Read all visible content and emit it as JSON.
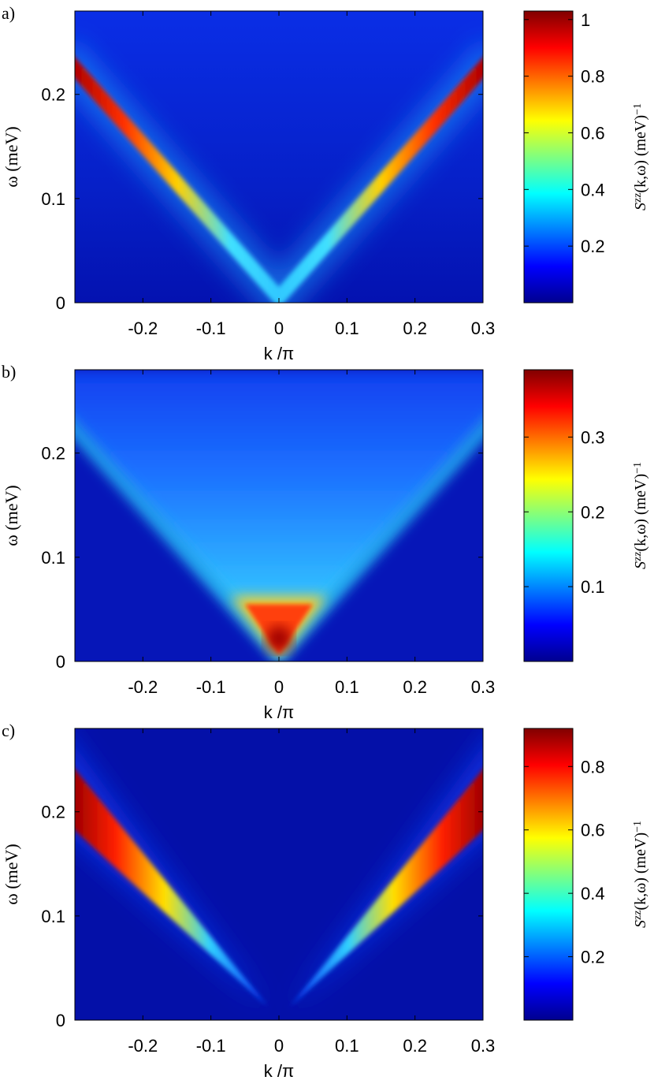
{
  "chart_data": [
    {
      "type": "heatmap",
      "panel_label": "a)",
      "xlabel": "k /π",
      "ylabel": "ω (meV)",
      "xlim": [
        -0.3,
        0.3
      ],
      "ylim": [
        0,
        0.28
      ],
      "xticks": [
        -0.2,
        -0.1,
        0,
        0.1,
        0.2,
        0.3
      ],
      "yticks": [
        0,
        0.1,
        0.2
      ],
      "colorbar_label": [
        "S",
        "zz",
        "(k,ω) (meV)",
        "−1"
      ],
      "clim": [
        0,
        1.03
      ],
      "cticks": [
        0.2,
        0.4,
        0.6,
        0.8,
        1
      ]
    },
    {
      "type": "heatmap",
      "panel_label": "b)",
      "xlabel": "k /π",
      "ylabel": "ω (meV)",
      "xlim": [
        -0.3,
        0.3
      ],
      "ylim": [
        0,
        0.28
      ],
      "xticks": [
        -0.2,
        -0.1,
        0,
        0.1,
        0.2,
        0.3
      ],
      "yticks": [
        0,
        0.1,
        0.2
      ],
      "colorbar_label": [
        "S",
        "zz",
        "(k,ω) (meV)",
        "−1"
      ],
      "clim": [
        0,
        0.39
      ],
      "cticks": [
        0.1,
        0.2,
        0.3
      ]
    },
    {
      "type": "heatmap",
      "panel_label": "c)",
      "xlabel": "k /π",
      "ylabel": "ω (meV)",
      "xlim": [
        -0.3,
        0.3
      ],
      "ylim": [
        0,
        0.28
      ],
      "xticks": [
        -0.2,
        -0.1,
        0,
        0.1,
        0.2,
        0.3
      ],
      "yticks": [
        0,
        0.1,
        0.2
      ],
      "colorbar_label": [
        "S",
        "zz",
        "(k,ω) (meV)",
        "−1"
      ],
      "clim": [
        0,
        0.92
      ],
      "cticks": [
        0.2,
        0.4,
        0.6,
        0.8
      ]
    }
  ]
}
